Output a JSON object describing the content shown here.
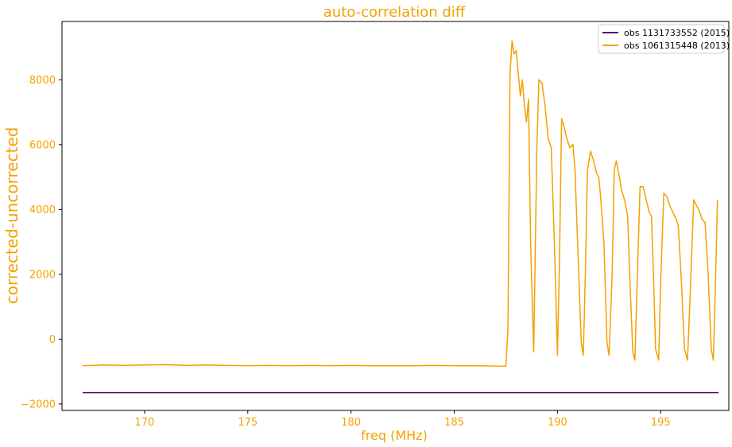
{
  "chart_data": {
    "type": "line",
    "title": "auto-correlation diff",
    "xlabel": "freq (MHz)",
    "ylabel": "corrected-uncorrected",
    "xlim": [
      166.0,
      198.3
    ],
    "ylim": [
      -2200,
      9800
    ],
    "xticks": [
      170,
      175,
      180,
      185,
      190,
      195
    ],
    "yticks": [
      -2000,
      0,
      2000,
      4000,
      6000,
      8000
    ],
    "grid": false,
    "legend_position": "top-right",
    "colors": {
      "accent": "#f5a000",
      "axes": "#000000"
    },
    "series": [
      {
        "name": "obs 1131733552 (2015)",
        "color": "#4b0a6e",
        "x": [
          167.0,
          197.8
        ],
        "y": [
          -1650,
          -1650
        ]
      },
      {
        "name": "obs 1061315448 (2013)",
        "color": "#f5a000",
        "x": [
          167.0,
          168.0,
          169.0,
          170.0,
          171.0,
          172.0,
          173.0,
          174.0,
          175.0,
          176.0,
          177.0,
          178.0,
          179.0,
          180.0,
          181.0,
          182.0,
          183.0,
          184.0,
          185.0,
          186.0,
          187.0,
          187.5,
          187.6,
          187.7,
          187.8,
          187.9,
          188.0,
          188.1,
          188.2,
          188.3,
          188.4,
          188.5,
          188.6,
          188.7,
          188.85,
          189.0,
          189.1,
          189.25,
          189.4,
          189.55,
          189.7,
          189.85,
          190.0,
          190.1,
          190.2,
          190.3,
          190.45,
          190.6,
          190.75,
          190.85,
          191.0,
          191.15,
          191.25,
          191.35,
          191.45,
          191.6,
          191.75,
          191.9,
          192.0,
          192.1,
          192.25,
          192.4,
          192.5,
          192.65,
          192.75,
          192.85,
          193.0,
          193.1,
          193.25,
          193.4,
          193.5,
          193.65,
          193.75,
          193.85,
          194.0,
          194.15,
          194.3,
          194.45,
          194.55,
          194.65,
          194.75,
          194.9,
          195.0,
          195.15,
          195.3,
          195.45,
          195.6,
          195.75,
          195.85,
          196.0,
          196.15,
          196.3,
          196.45,
          196.6,
          196.75,
          196.85,
          197.0,
          197.15,
          197.3,
          197.45,
          197.55,
          197.65,
          197.75
        ],
        "y": [
          -820,
          -800,
          -810,
          -800,
          -790,
          -810,
          -800,
          -810,
          -820,
          -810,
          -820,
          -810,
          -820,
          -810,
          -820,
          -820,
          -820,
          -810,
          -820,
          -820,
          -830,
          -830,
          300,
          8200,
          9200,
          8800,
          8900,
          8200,
          7500,
          8000,
          7200,
          6700,
          7400,
          3000,
          -400,
          5800,
          8000,
          7900,
          7200,
          6200,
          5900,
          3000,
          -500,
          2500,
          6800,
          6600,
          6200,
          5900,
          6000,
          5200,
          2500,
          -100,
          -500,
          2000,
          5200,
          5800,
          5500,
          5100,
          5000,
          4300,
          3000,
          -100,
          -500,
          2000,
          5200,
          5500,
          5000,
          4600,
          4300,
          3800,
          2000,
          -400,
          -650,
          1500,
          4700,
          4700,
          4300,
          3900,
          3800,
          2000,
          -300,
          -650,
          1800,
          4500,
          4400,
          4100,
          3900,
          3700,
          3500,
          1800,
          -300,
          -650,
          1700,
          4300,
          4100,
          4000,
          3700,
          3600,
          2000,
          -300,
          -650,
          1600,
          4300
        ]
      }
    ]
  }
}
